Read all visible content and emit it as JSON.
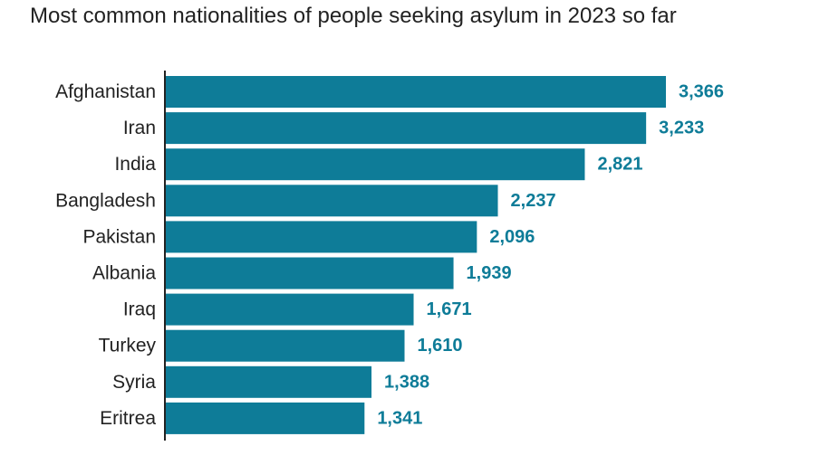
{
  "chart_data": {
    "type": "bar",
    "orientation": "horizontal",
    "title": "Most common nationalities of people seeking asylum in 2023 so far",
    "categories": [
      "Afghanistan",
      "Iran",
      "India",
      "Bangladesh",
      "Pakistan",
      "Albania",
      "Iraq",
      "Turkey",
      "Syria",
      "Eritrea"
    ],
    "values": [
      3366,
      3233,
      2821,
      2237,
      2096,
      1939,
      1671,
      1610,
      1388,
      1341
    ],
    "value_labels": [
      "3,366",
      "3,233",
      "2,821",
      "2,237",
      "2,096",
      "1,939",
      "1,671",
      "1,610",
      "1,388",
      "1,341"
    ],
    "xlabel": "",
    "ylabel": "",
    "xlim": [
      0,
      3366
    ],
    "grid": false,
    "legend": "none",
    "colors": {
      "bar": "#0e7c98",
      "value_label": "#0e7c98",
      "axis": "#222222",
      "text": "#222222"
    }
  }
}
